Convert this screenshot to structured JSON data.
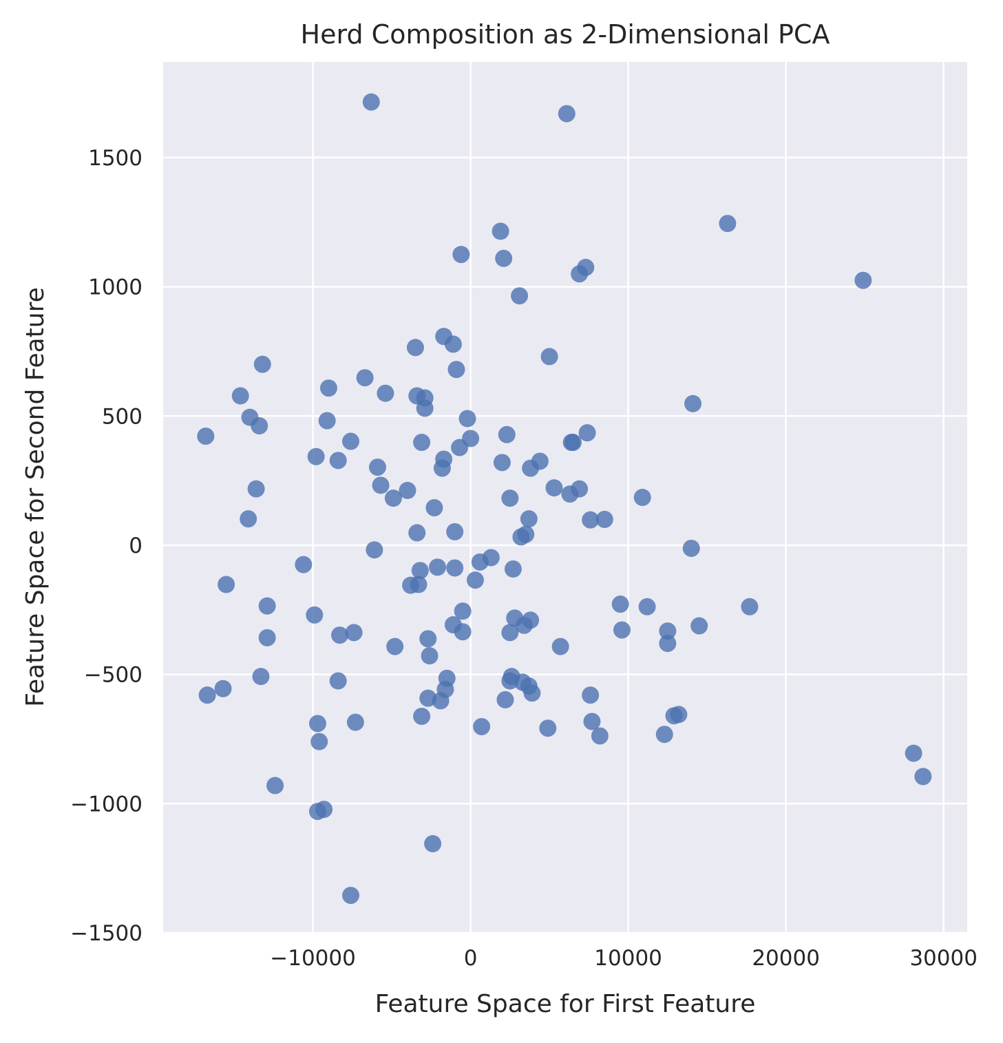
{
  "chart_data": {
    "type": "scatter",
    "title": "Herd Composition as 2-Dimensional PCA",
    "xlabel": "Feature Space for First Feature",
    "ylabel": "Feature Space for Second Feature",
    "xlim": [
      -19500,
      31500
    ],
    "ylim": [
      -1500,
      1870
    ],
    "xticks": [
      -10000,
      0,
      10000,
      20000,
      30000
    ],
    "xtick_labels": [
      "−10000",
      "0",
      "10000",
      "20000",
      "30000"
    ],
    "yticks": [
      -1500,
      -1000,
      -500,
      0,
      500,
      1000,
      1500
    ],
    "ytick_labels": [
      "−1500",
      "−1000",
      "−500",
      "0",
      "500",
      "1000",
      "1500"
    ],
    "grid": true,
    "colors": {
      "background": "#eaeaf2",
      "grid": "#ffffff",
      "point": "#4c72b0"
    },
    "points": [
      {
        "x": -6300,
        "y": 1715
      },
      {
        "x": 6100,
        "y": 1670
      },
      {
        "x": 16300,
        "y": 1245
      },
      {
        "x": 1900,
        "y": 1215
      },
      {
        "x": -600,
        "y": 1125
      },
      {
        "x": 2100,
        "y": 1110
      },
      {
        "x": 7300,
        "y": 1075
      },
      {
        "x": 6900,
        "y": 1050
      },
      {
        "x": 24900,
        "y": 1025
      },
      {
        "x": 3100,
        "y": 965
      },
      {
        "x": -1700,
        "y": 808
      },
      {
        "x": -1100,
        "y": 778
      },
      {
        "x": -3500,
        "y": 765
      },
      {
        "x": 5000,
        "y": 730
      },
      {
        "x": -13200,
        "y": 700
      },
      {
        "x": -900,
        "y": 680
      },
      {
        "x": -6700,
        "y": 648
      },
      {
        "x": -9000,
        "y": 608
      },
      {
        "x": -5400,
        "y": 588
      },
      {
        "x": -14600,
        "y": 578
      },
      {
        "x": -3400,
        "y": 578
      },
      {
        "x": -2900,
        "y": 570
      },
      {
        "x": 14100,
        "y": 548
      },
      {
        "x": -2900,
        "y": 530
      },
      {
        "x": -14000,
        "y": 495
      },
      {
        "x": -9100,
        "y": 482
      },
      {
        "x": -200,
        "y": 490
      },
      {
        "x": -13400,
        "y": 462
      },
      {
        "x": 7400,
        "y": 435
      },
      {
        "x": 2300,
        "y": 428
      },
      {
        "x": -16800,
        "y": 422
      },
      {
        "x": 0,
        "y": 413
      },
      {
        "x": -7600,
        "y": 402
      },
      {
        "x": -3100,
        "y": 398
      },
      {
        "x": 6400,
        "y": 398
      },
      {
        "x": 6500,
        "y": 398
      },
      {
        "x": -700,
        "y": 378
      },
      {
        "x": -9800,
        "y": 343
      },
      {
        "x": -1700,
        "y": 333
      },
      {
        "x": -8400,
        "y": 328
      },
      {
        "x": 4400,
        "y": 325
      },
      {
        "x": 2000,
        "y": 320
      },
      {
        "x": -5900,
        "y": 302
      },
      {
        "x": -1800,
        "y": 298
      },
      {
        "x": 3800,
        "y": 298
      },
      {
        "x": -5700,
        "y": 232
      },
      {
        "x": 5300,
        "y": 222
      },
      {
        "x": 6900,
        "y": 218
      },
      {
        "x": -13600,
        "y": 218
      },
      {
        "x": -4000,
        "y": 212
      },
      {
        "x": 6300,
        "y": 198
      },
      {
        "x": 10900,
        "y": 185
      },
      {
        "x": 2500,
        "y": 182
      },
      {
        "x": -4900,
        "y": 182
      },
      {
        "x": -2300,
        "y": 145
      },
      {
        "x": -14100,
        "y": 102
      },
      {
        "x": 3700,
        "y": 102
      },
      {
        "x": 7600,
        "y": 98
      },
      {
        "x": 8500,
        "y": 100
      },
      {
        "x": -1000,
        "y": 52
      },
      {
        "x": -3400,
        "y": 48
      },
      {
        "x": 3500,
        "y": 42
      },
      {
        "x": 3200,
        "y": 32
      },
      {
        "x": -6100,
        "y": -18
      },
      {
        "x": 14000,
        "y": -12
      },
      {
        "x": -10600,
        "y": -75
      },
      {
        "x": 1300,
        "y": -48
      },
      {
        "x": 600,
        "y": -65
      },
      {
        "x": -2100,
        "y": -85
      },
      {
        "x": -1000,
        "y": -88
      },
      {
        "x": 2700,
        "y": -92
      },
      {
        "x": -3200,
        "y": -98
      },
      {
        "x": 300,
        "y": -135
      },
      {
        "x": -3800,
        "y": -155
      },
      {
        "x": -3300,
        "y": -152
      },
      {
        "x": -15500,
        "y": -152
      },
      {
        "x": 9500,
        "y": -228
      },
      {
        "x": 11200,
        "y": -238
      },
      {
        "x": 17700,
        "y": -238
      },
      {
        "x": -12900,
        "y": -235
      },
      {
        "x": -500,
        "y": -255
      },
      {
        "x": -9900,
        "y": -270
      },
      {
        "x": 2800,
        "y": -282
      },
      {
        "x": 3800,
        "y": -290
      },
      {
        "x": 3400,
        "y": -310
      },
      {
        "x": -1100,
        "y": -308
      },
      {
        "x": 14500,
        "y": -312
      },
      {
        "x": 9600,
        "y": -328
      },
      {
        "x": 12500,
        "y": -332
      },
      {
        "x": -500,
        "y": -335
      },
      {
        "x": 2500,
        "y": -338
      },
      {
        "x": -7400,
        "y": -338
      },
      {
        "x": -8300,
        "y": -348
      },
      {
        "x": -12900,
        "y": -358
      },
      {
        "x": -2700,
        "y": -362
      },
      {
        "x": 12500,
        "y": -380
      },
      {
        "x": 5700,
        "y": -392
      },
      {
        "x": -4800,
        "y": -392
      },
      {
        "x": -2600,
        "y": -428
      },
      {
        "x": -13300,
        "y": -508
      },
      {
        "x": 2600,
        "y": -508
      },
      {
        "x": -1500,
        "y": -515
      },
      {
        "x": 2500,
        "y": -525
      },
      {
        "x": 3300,
        "y": -530
      },
      {
        "x": -8400,
        "y": -525
      },
      {
        "x": 3700,
        "y": -545
      },
      {
        "x": -15700,
        "y": -555
      },
      {
        "x": -1600,
        "y": -558
      },
      {
        "x": 3900,
        "y": -572
      },
      {
        "x": 7600,
        "y": -580
      },
      {
        "x": -16700,
        "y": -580
      },
      {
        "x": -2700,
        "y": -592
      },
      {
        "x": 2200,
        "y": -598
      },
      {
        "x": -1900,
        "y": -602
      },
      {
        "x": 13200,
        "y": -655
      },
      {
        "x": 12900,
        "y": -660
      },
      {
        "x": -3100,
        "y": -662
      },
      {
        "x": 7700,
        "y": -682
      },
      {
        "x": -7300,
        "y": -685
      },
      {
        "x": -9700,
        "y": -690
      },
      {
        "x": 700,
        "y": -702
      },
      {
        "x": 4900,
        "y": -708
      },
      {
        "x": 12300,
        "y": -732
      },
      {
        "x": 8200,
        "y": -738
      },
      {
        "x": -9600,
        "y": -760
      },
      {
        "x": 28100,
        "y": -805
      },
      {
        "x": 28700,
        "y": -895
      },
      {
        "x": -12400,
        "y": -930
      },
      {
        "x": -9300,
        "y": -1022
      },
      {
        "x": -9700,
        "y": -1030
      },
      {
        "x": -2400,
        "y": -1155
      },
      {
        "x": -7600,
        "y": -1355
      }
    ]
  }
}
